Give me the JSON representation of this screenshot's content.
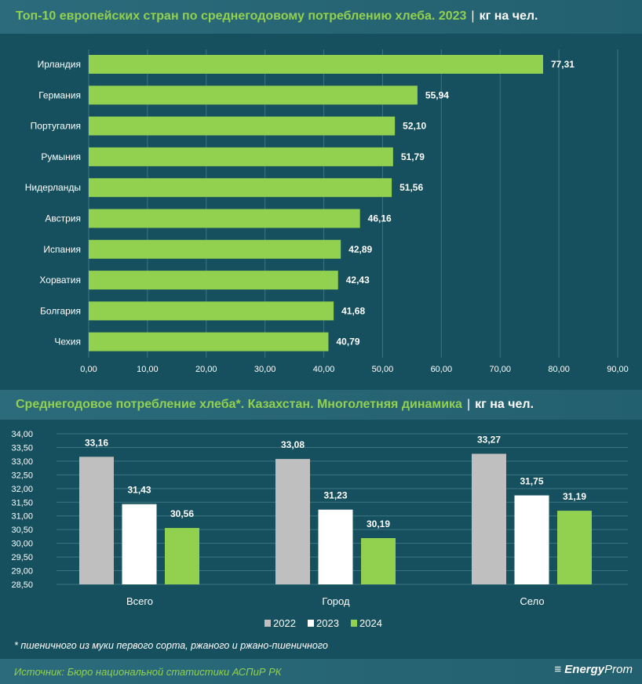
{
  "chart_data": [
    {
      "type": "bar",
      "orientation": "horizontal",
      "title": "Топ-10 европейских стран по среднегодовому потреблению хлеба. 2023",
      "unit": "кг на чел.",
      "categories": [
        "Ирландия",
        "Германия",
        "Португалия",
        "Румыния",
        "Нидерланды",
        "Австрия",
        "Испания",
        "Хорватия",
        "Болгария",
        "Чехия"
      ],
      "values": [
        77.31,
        55.94,
        52.1,
        51.79,
        51.56,
        46.16,
        42.89,
        42.43,
        41.68,
        40.79
      ],
      "value_labels": [
        "77,31",
        "55,94",
        "52,10",
        "51,79",
        "51,56",
        "46,16",
        "42,89",
        "42,43",
        "41,68",
        "40,79"
      ],
      "xlim": [
        0,
        90
      ],
      "ticks": [
        "0,00",
        "10,00",
        "20,00",
        "30,00",
        "40,00",
        "50,00",
        "60,00",
        "70,00",
        "80,00",
        "90,00"
      ],
      "grid": true,
      "color": "#92d050"
    },
    {
      "type": "bar",
      "title": "Среднегодовое потребление хлеба*. Казахстан. Многолетняя динамика",
      "unit": "кг на чел.",
      "categories": [
        "Всего",
        "Город",
        "Село"
      ],
      "series": [
        {
          "name": "2022",
          "values": [
            33.16,
            33.08,
            33.27
          ],
          "labels": [
            "33,16",
            "33,08",
            "33,27"
          ],
          "color": "#bfbfbf"
        },
        {
          "name": "2023",
          "values": [
            31.43,
            31.23,
            31.75
          ],
          "labels": [
            "31,43",
            "31,23",
            "31,75"
          ],
          "color": "#ffffff"
        },
        {
          "name": "2024",
          "values": [
            30.56,
            30.19,
            31.19
          ],
          "labels": [
            "30,56",
            "30,19",
            "31,19"
          ],
          "color": "#92d050"
        }
      ],
      "ylim": [
        28.5,
        34
      ],
      "ticks": [
        "28,50",
        "29,00",
        "29,50",
        "30,00",
        "30,50",
        "31,00",
        "31,50",
        "32,00",
        "32,50",
        "33,00",
        "33,50",
        "34,00"
      ],
      "legend": "bottom",
      "grid": true
    }
  ],
  "footnote": "* пшеничного из муки первого сорта, ржаного и ржано-пшеничного",
  "source": "Источник: Бюро национальной статистики АСПиР РК",
  "logo": {
    "bold": "Energy",
    "light": "Prom"
  }
}
